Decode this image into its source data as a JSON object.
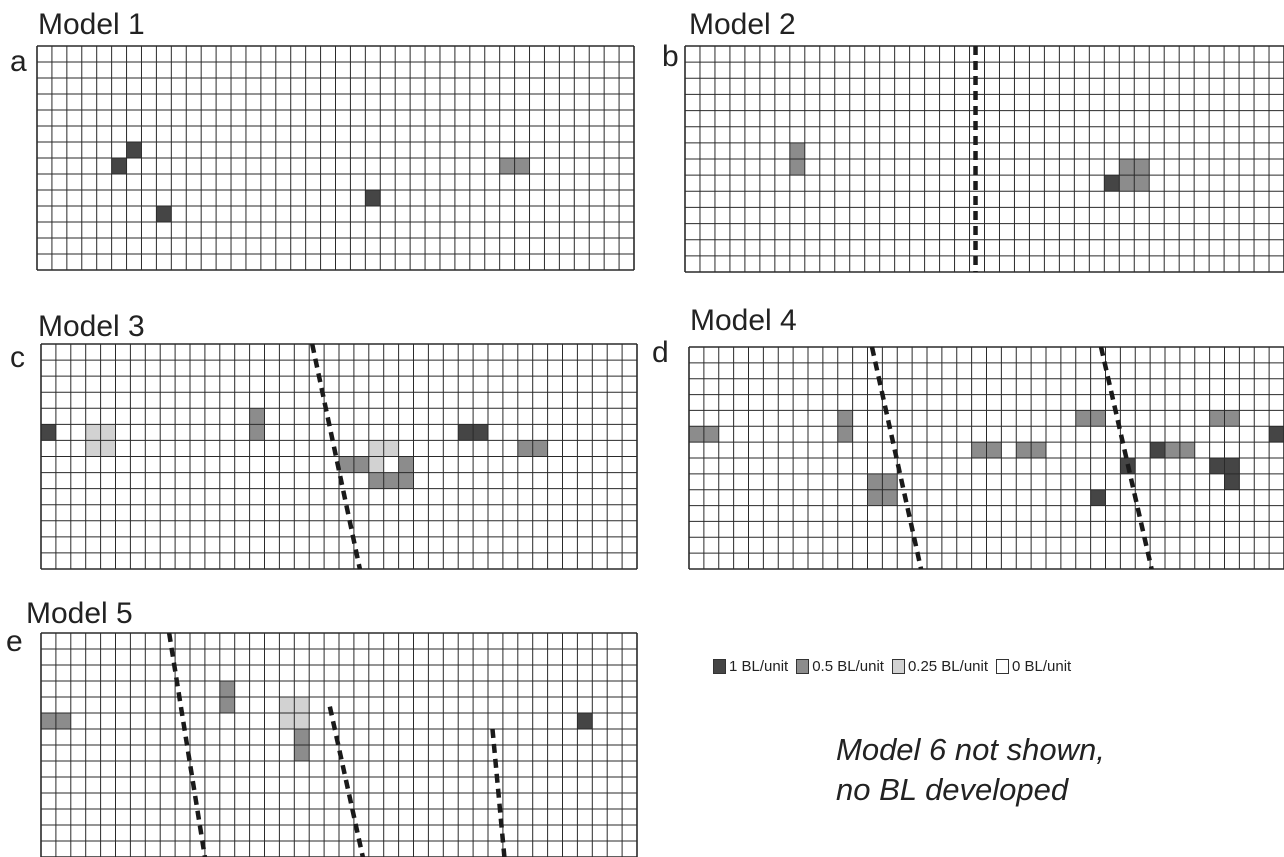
{
  "colors": {
    "c1": "#454545",
    "c05": "#8c8c8c",
    "c025": "#d2d2d2",
    "c0": "#ffffff",
    "grid_line": "#2a2a2a",
    "fault": "#1a1a1a"
  },
  "panels": [
    {
      "title": "Model 1",
      "letter": "a",
      "cols": 40,
      "rows": 14,
      "cells": [
        {
          "c": 6,
          "r": 6,
          "v": "1"
        },
        {
          "c": 5,
          "r": 7,
          "v": "1"
        },
        {
          "c": 8,
          "r": 10,
          "v": "1"
        },
        {
          "c": 22,
          "r": 9,
          "v": "1"
        },
        {
          "c": 31,
          "r": 7,
          "v": "0.5"
        },
        {
          "c": 32,
          "r": 7,
          "v": "0.5"
        }
      ],
      "faults": []
    },
    {
      "title": "Model 2",
      "letter": "b",
      "cols": 40,
      "rows": 14,
      "cells": [
        {
          "c": 7,
          "r": 6,
          "v": "0.5"
        },
        {
          "c": 7,
          "r": 7,
          "v": "0.5"
        },
        {
          "c": 28,
          "r": 8,
          "v": "1"
        },
        {
          "c": 29,
          "r": 7,
          "v": "0.5"
        },
        {
          "c": 30,
          "r": 7,
          "v": "0.5"
        },
        {
          "c": 29,
          "r": 8,
          "v": "0.5"
        },
        {
          "c": 30,
          "r": 8,
          "v": "0.5"
        }
      ],
      "faults": [
        {
          "top": 19.4,
          "bottom": 19.4
        }
      ]
    },
    {
      "title": "Model 3",
      "letter": "c",
      "cols": 40,
      "rows": 14,
      "cells": [
        {
          "c": 0,
          "r": 5,
          "v": "1"
        },
        {
          "c": 3,
          "r": 5,
          "v": "0.25"
        },
        {
          "c": 4,
          "r": 5,
          "v": "0.25"
        },
        {
          "c": 3,
          "r": 6,
          "v": "0.25"
        },
        {
          "c": 4,
          "r": 6,
          "v": "0.25"
        },
        {
          "c": 14,
          "r": 4,
          "v": "0.5"
        },
        {
          "c": 14,
          "r": 5,
          "v": "0.5"
        },
        {
          "c": 28,
          "r": 5,
          "v": "1"
        },
        {
          "c": 29,
          "r": 5,
          "v": "1"
        },
        {
          "c": 32,
          "r": 6,
          "v": "0.5"
        },
        {
          "c": 33,
          "r": 6,
          "v": "0.5"
        },
        {
          "c": 22,
          "r": 6,
          "v": "0.25"
        },
        {
          "c": 23,
          "r": 6,
          "v": "0.25"
        },
        {
          "c": 20,
          "r": 7,
          "v": "0.5"
        },
        {
          "c": 21,
          "r": 7,
          "v": "0.5"
        },
        {
          "c": 22,
          "r": 7,
          "v": "0.25"
        },
        {
          "c": 24,
          "r": 7,
          "v": "0.5"
        },
        {
          "c": 22,
          "r": 8,
          "v": "0.5"
        },
        {
          "c": 23,
          "r": 8,
          "v": "0.5"
        },
        {
          "c": 24,
          "r": 8,
          "v": "0.5"
        }
      ],
      "faults": [
        {
          "top": 18.2,
          "bottom": 21.4
        }
      ]
    },
    {
      "title": "Model 4",
      "letter": "d",
      "cols": 40,
      "rows": 14,
      "cells": [
        {
          "c": 0,
          "r": 5,
          "v": "0.5"
        },
        {
          "c": 1,
          "r": 5,
          "v": "0.5"
        },
        {
          "c": 10,
          "r": 4,
          "v": "0.5"
        },
        {
          "c": 10,
          "r": 5,
          "v": "0.5"
        },
        {
          "c": 26,
          "r": 4,
          "v": "0.5"
        },
        {
          "c": 27,
          "r": 4,
          "v": "0.5"
        },
        {
          "c": 35,
          "r": 4,
          "v": "0.5"
        },
        {
          "c": 36,
          "r": 4,
          "v": "0.5"
        },
        {
          "c": 39,
          "r": 5,
          "v": "1"
        },
        {
          "c": 19,
          "r": 6,
          "v": "0.5"
        },
        {
          "c": 20,
          "r": 6,
          "v": "0.5"
        },
        {
          "c": 22,
          "r": 6,
          "v": "0.5"
        },
        {
          "c": 23,
          "r": 6,
          "v": "0.5"
        },
        {
          "c": 31,
          "r": 6,
          "v": "1"
        },
        {
          "c": 32,
          "r": 6,
          "v": "0.5"
        },
        {
          "c": 33,
          "r": 6,
          "v": "0.5"
        },
        {
          "c": 29,
          "r": 7,
          "v": "1"
        },
        {
          "c": 35,
          "r": 7,
          "v": "1"
        },
        {
          "c": 36,
          "r": 7,
          "v": "1"
        },
        {
          "c": 36,
          "r": 8,
          "v": "1"
        },
        {
          "c": 12,
          "r": 8,
          "v": "0.5"
        },
        {
          "c": 13,
          "r": 8,
          "v": "0.5"
        },
        {
          "c": 12,
          "r": 9,
          "v": "0.5"
        },
        {
          "c": 13,
          "r": 9,
          "v": "0.5"
        },
        {
          "c": 27,
          "r": 9,
          "v": "1"
        }
      ],
      "faults": [
        {
          "top": 12.3,
          "bottom": 15.6
        },
        {
          "top": 27.7,
          "bottom": 31.1
        }
      ]
    },
    {
      "title": "Model 5",
      "letter": "e",
      "cols": 40,
      "rows": 14,
      "cells": [
        {
          "c": 0,
          "r": 5,
          "v": "0.5"
        },
        {
          "c": 1,
          "r": 5,
          "v": "0.5"
        },
        {
          "c": 12,
          "r": 3,
          "v": "0.5"
        },
        {
          "c": 12,
          "r": 4,
          "v": "0.5"
        },
        {
          "c": 16,
          "r": 4,
          "v": "0.25"
        },
        {
          "c": 17,
          "r": 4,
          "v": "0.25"
        },
        {
          "c": 16,
          "r": 5,
          "v": "0.25"
        },
        {
          "c": 17,
          "r": 5,
          "v": "0.25"
        },
        {
          "c": 17,
          "r": 6,
          "v": "0.5"
        },
        {
          "c": 17,
          "r": 7,
          "v": "0.5"
        },
        {
          "c": 36,
          "r": 5,
          "v": "1"
        }
      ],
      "faults": [
        {
          "top": 8.6,
          "bottom": 11.0
        },
        {
          "top": 18.3,
          "bottom": 21.6,
          "startRow": 4.6
        },
        {
          "top": 29.7,
          "bottom": 31.1,
          "startRow": 6.0
        }
      ]
    }
  ],
  "legend": [
    {
      "key": "c1",
      "label": "1 BL/unit"
    },
    {
      "key": "c05",
      "label": "0.5 BL/unit"
    },
    {
      "key": "c025",
      "label": "0.25 BL/unit"
    },
    {
      "key": "c0",
      "label": "0 BL/unit"
    }
  ],
  "note": {
    "line1": "Model 6 not shown,",
    "line2": "no BL developed"
  }
}
